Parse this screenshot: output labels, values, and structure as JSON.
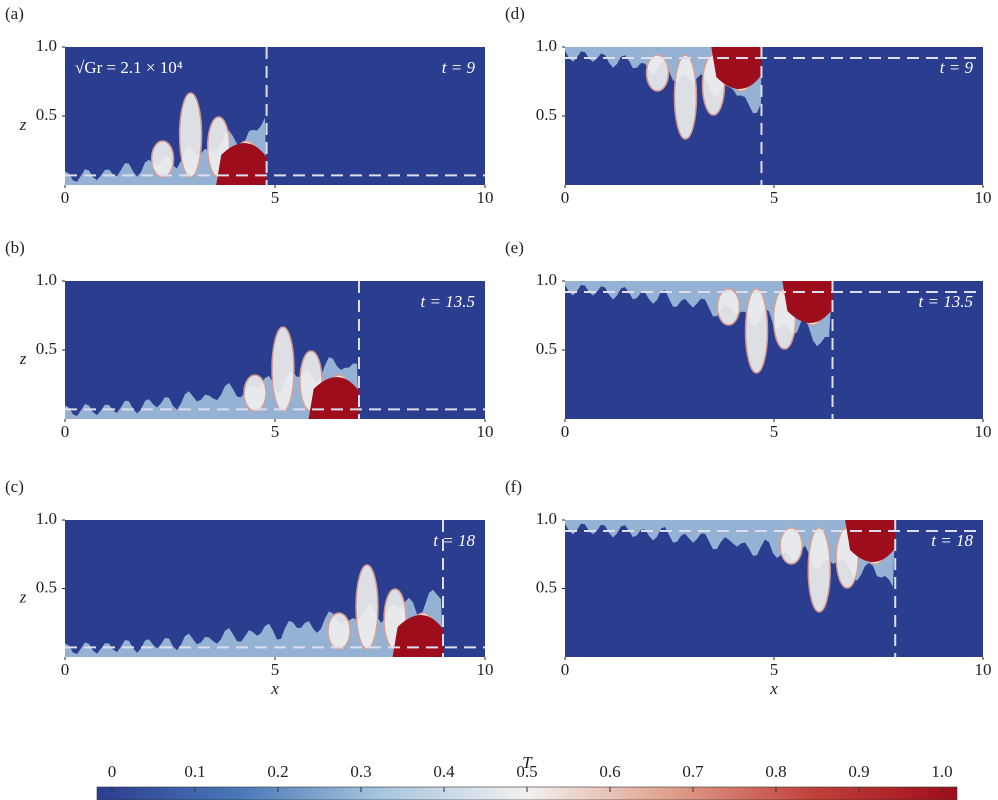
{
  "chart_data": [
    {
      "type": "heatmap",
      "panel_label": "(a)",
      "annotation": "√Gr = 2.1 × 10⁴",
      "time_label": "t = 9",
      "ylabel": "z",
      "xlim": [
        0,
        10
      ],
      "ylim": [
        0,
        1
      ],
      "xticks": [
        0,
        5,
        10
      ],
      "yticks": [
        0.5,
        {
          "value": 1,
          "label": "1.0"
        }
      ],
      "front_x": 4.8,
      "interface_z": 0.07,
      "side": "bottom"
    },
    {
      "type": "heatmap",
      "panel_label": "(d)",
      "time_label": "t = 9",
      "xlim": [
        0,
        10
      ],
      "ylim": [
        0,
        1
      ],
      "xticks": [
        0,
        5,
        10
      ],
      "yticks": [
        0.5,
        {
          "value": 1,
          "label": "1.0"
        }
      ],
      "front_x": 4.7,
      "interface_z": 0.92,
      "side": "top"
    },
    {
      "type": "heatmap",
      "panel_label": "(b)",
      "time_label": "t = 13.5",
      "ylabel": "z",
      "xlim": [
        0,
        10
      ],
      "ylim": [
        0,
        1
      ],
      "xticks": [
        0,
        5,
        10
      ],
      "yticks": [
        0.5,
        {
          "value": 1,
          "label": "1.0"
        }
      ],
      "front_x": 7.0,
      "interface_z": 0.07,
      "side": "bottom"
    },
    {
      "type": "heatmap",
      "panel_label": "(e)",
      "time_label": "t = 13.5",
      "xlim": [
        0,
        10
      ],
      "ylim": [
        0,
        1
      ],
      "xticks": [
        0,
        5,
        10
      ],
      "yticks": [
        0.5,
        {
          "value": 1,
          "label": "1.0"
        }
      ],
      "front_x": 6.4,
      "interface_z": 0.92,
      "side": "top"
    },
    {
      "type": "heatmap",
      "panel_label": "(c)",
      "time_label": "t = 18",
      "ylabel": "z",
      "xlabel": "x",
      "xlim": [
        0,
        10
      ],
      "ylim": [
        0,
        1
      ],
      "xticks": [
        0,
        5,
        10
      ],
      "yticks": [
        0.5,
        {
          "value": 1,
          "label": "1.0"
        }
      ],
      "front_x": 9.0,
      "interface_z": 0.07,
      "side": "bottom"
    },
    {
      "type": "heatmap",
      "panel_label": "(f)",
      "time_label": "t = 18",
      "xlabel": "x",
      "xlim": [
        0,
        10
      ],
      "ylim": [
        0,
        1
      ],
      "xticks": [
        0,
        5,
        10
      ],
      "yticks": [
        0.5,
        {
          "value": 1,
          "label": "1.0"
        }
      ],
      "front_x": 7.9,
      "interface_z": 0.92,
      "side": "top"
    }
  ],
  "colorbar": {
    "label": "T",
    "lim": [
      0,
      1
    ],
    "ticks": [
      0,
      0.1,
      0.2,
      0.3,
      0.4,
      0.5,
      0.6,
      0.7,
      0.8,
      0.9,
      {
        "value": 1,
        "label": "1.0"
      }
    ],
    "colors": [
      "#2b3d8f",
      "#4a78b8",
      "#a8c6df",
      "#f2f0ef",
      "#e0a08c",
      "#c0403a",
      "#9e0d1b"
    ]
  }
}
